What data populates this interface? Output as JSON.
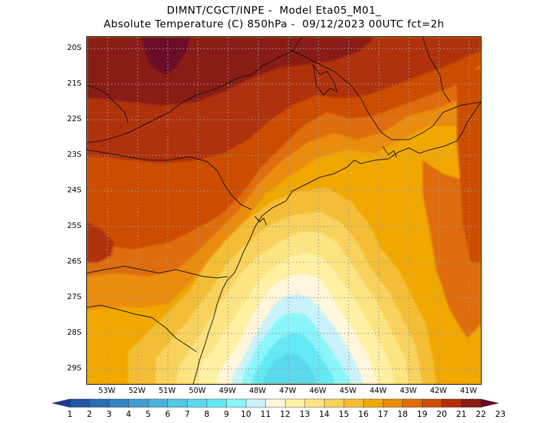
{
  "title": {
    "line1": "DIMNT/CGCT/INPE -  Model Eta05_M01_",
    "line2": "Absolute Temperature (C) 850hPa -  09/12/2023 00UTC fct=2h"
  },
  "lat_labels": [
    "20S",
    "21S",
    "22S",
    "23S",
    "24S",
    "25S",
    "26S",
    "27S",
    "28S",
    "29S"
  ],
  "lon_labels": [
    "53W",
    "52W",
    "51W",
    "50W",
    "49W",
    "48W",
    "47W",
    "46W",
    "45W",
    "44W",
    "43W",
    "42W",
    "41W"
  ],
  "colorbar": {
    "labels": [
      "1",
      "2",
      "3",
      "4",
      "5",
      "6",
      "7",
      "8",
      "9",
      "10",
      "11",
      "12",
      "13",
      "14",
      "15",
      "16",
      "17",
      "18",
      "19",
      "20",
      "21",
      "22",
      "23"
    ],
    "colors": [
      "#1c3b94",
      "#2154a5",
      "#2a6db4",
      "#3485c2",
      "#3f9ccf",
      "#4ab3db",
      "#54c6e6",
      "#5ad9ef",
      "#63e9f5",
      "#8af5fb",
      "#c9f2fa",
      "#fff6dc",
      "#fff1a3",
      "#fde482",
      "#f8d25b",
      "#f3bd36",
      "#f0a800",
      "#ea8c08",
      "#df6d0a",
      "#cc4e06",
      "#b03008",
      "#8a1b14",
      "#6b0a25"
    ]
  },
  "colors": {
    "warm_darkest": "#6b0a25",
    "cool_core": "#5ad9ef",
    "background": "#f2a600"
  }
}
